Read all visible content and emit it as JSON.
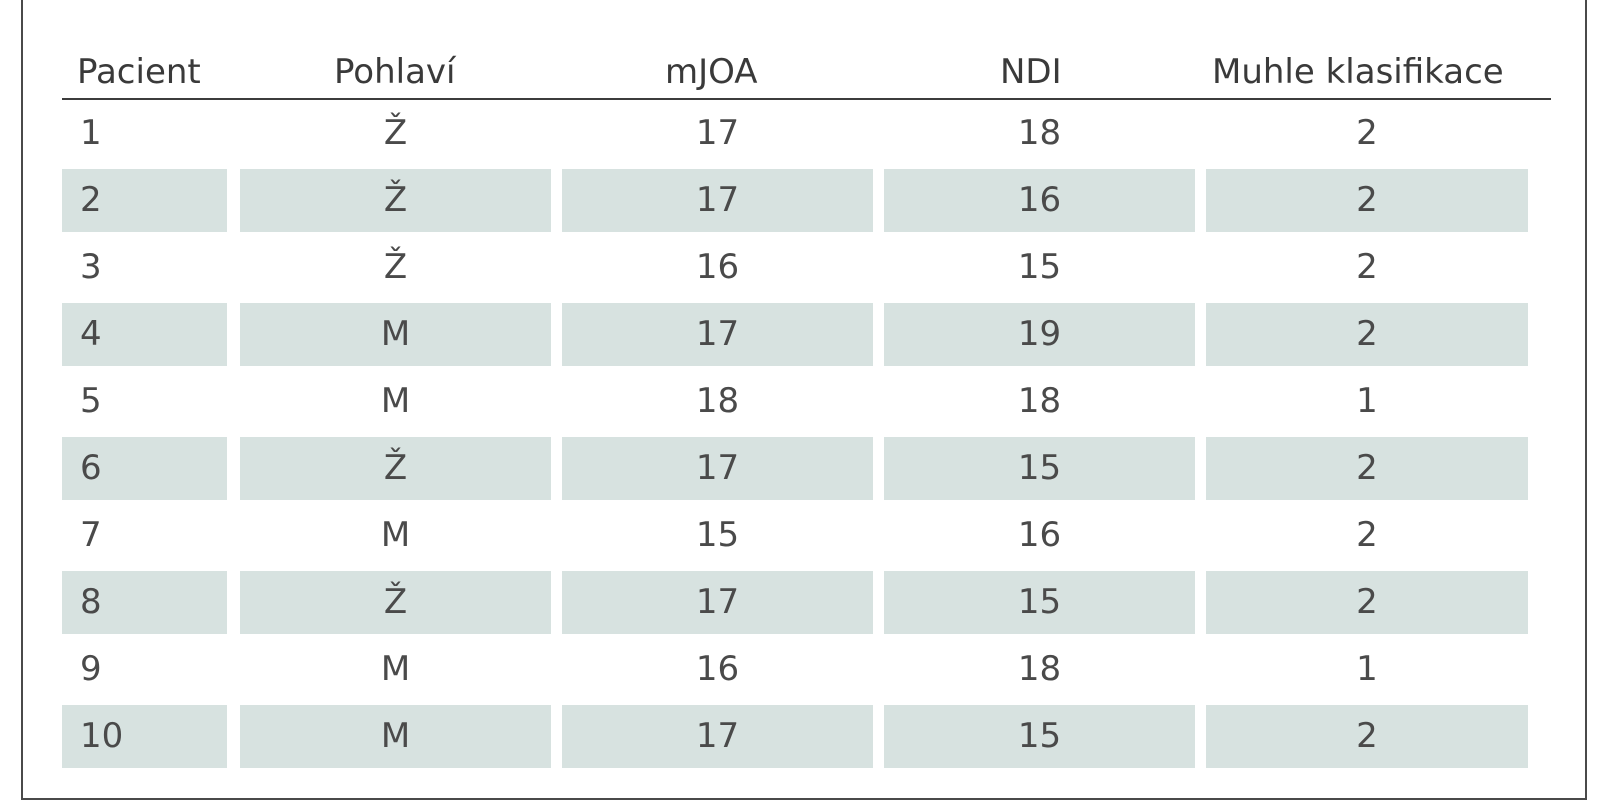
{
  "table": {
    "headers": [
      "Pacient",
      "Pohlaví",
      "mJOA",
      "NDI",
      "Muhle klasifikace"
    ],
    "rows": [
      [
        "1",
        "Ž",
        "17",
        "18",
        "2"
      ],
      [
        "2",
        "Ž",
        "17",
        "16",
        "2"
      ],
      [
        "3",
        "Ž",
        "16",
        "15",
        "2"
      ],
      [
        "4",
        "M",
        "17",
        "19",
        "2"
      ],
      [
        "5",
        "M",
        "18",
        "18",
        "1"
      ],
      [
        "6",
        "Ž",
        "17",
        "15",
        "2"
      ],
      [
        "7",
        "M",
        "15",
        "16",
        "2"
      ],
      [
        "8",
        "Ž",
        "17",
        "15",
        "2"
      ],
      [
        "9",
        "M",
        "16",
        "18",
        "1"
      ],
      [
        "10",
        "M",
        "17",
        "15",
        "2"
      ]
    ]
  },
  "colors": {
    "shaded_row": "#d7e2e0",
    "text": "#3a3a3a",
    "rule": "#3c3c3c"
  }
}
